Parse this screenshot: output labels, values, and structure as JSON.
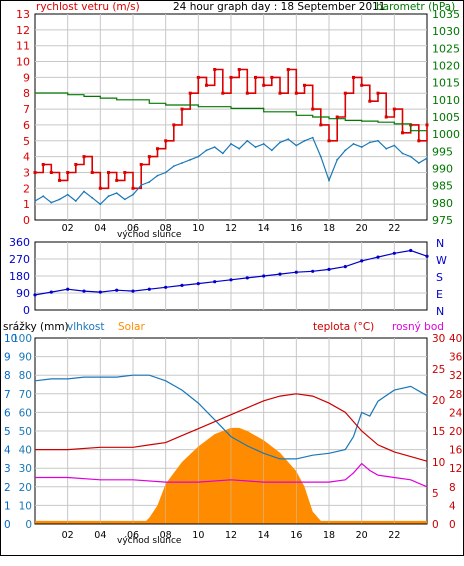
{
  "colors": {
    "wind": "#dd0000",
    "gust_line": "#cc0000",
    "humidity_blue": "#1a78b8",
    "pressure": "#007700",
    "direction": "#0000cc",
    "solar": "#ff8c00",
    "temperature": "#cc0000",
    "dew_point": "#dd00dd",
    "rain": "#0066cc",
    "grid": "#c8c8c8",
    "frame": "#000000"
  },
  "chart_data": [
    {
      "type": "line",
      "title": "24 hour graph day : 18 September 2011",
      "left_label": "rychlost vetru (m/s)",
      "right_label": "barometr (hPa)",
      "ylim_left": [
        0,
        13
      ],
      "yticks_left": [
        "0",
        "1",
        "2",
        "3",
        "4",
        "5",
        "6",
        "7",
        "8",
        "9",
        "10",
        "11",
        "12",
        "13"
      ],
      "ylim_right": [
        975,
        1035
      ],
      "yticks_right": [
        "975",
        "980",
        "985",
        "990",
        "995",
        "1000",
        "1005",
        "1010",
        "1015",
        "1020",
        "1025",
        "1030",
        "1035"
      ],
      "x_ticks": [
        "02",
        "04",
        "06",
        "08",
        "10",
        "12",
        "14",
        "16",
        "18",
        "20",
        "22",
        ""
      ],
      "x_note": "východ slunce",
      "series": [
        {
          "kind": "wind_gust",
          "x": [
            0,
            0.5,
            1,
            1.5,
            2,
            2.5,
            3,
            3.5,
            4,
            4.5,
            5,
            5.5,
            6,
            6.5,
            7,
            7.5,
            8,
            8.5,
            9,
            9.5,
            10,
            10.5,
            11,
            11.5,
            12,
            12.5,
            13,
            13.5,
            14,
            14.5,
            15,
            15.5,
            16,
            16.5,
            17,
            17.5,
            18,
            18.5,
            19,
            19.5,
            20,
            20.5,
            21,
            21.5,
            22,
            22.5,
            23,
            23.5,
            24
          ],
          "values": [
            3,
            3.5,
            3,
            2.5,
            3,
            3.5,
            4,
            3,
            2,
            3,
            2.5,
            3,
            2,
            3.5,
            4,
            4.5,
            5,
            6,
            7,
            8,
            9,
            8.5,
            9.5,
            8,
            9,
            9.5,
            8,
            9,
            8.5,
            9,
            8,
            9.5,
            8,
            8.5,
            7,
            6,
            5,
            6.5,
            8,
            9,
            8.5,
            7.5,
            8,
            6.5,
            7,
            5.5,
            6,
            5,
            6
          ]
        },
        {
          "kind": "wind_avg",
          "x": [
            0,
            0.5,
            1,
            1.5,
            2,
            2.5,
            3,
            3.5,
            4,
            4.5,
            5,
            5.5,
            6,
            6.5,
            7,
            7.5,
            8,
            8.5,
            9,
            9.5,
            10,
            10.5,
            11,
            11.5,
            12,
            12.5,
            13,
            13.5,
            14,
            14.5,
            15,
            15.5,
            16,
            16.5,
            17,
            17.5,
            18,
            18.5,
            19,
            19.5,
            20,
            20.5,
            21,
            21.5,
            22,
            22.5,
            23,
            23.5,
            24
          ],
          "values": [
            1.2,
            1.5,
            1.1,
            1.3,
            1.6,
            1.2,
            1.8,
            1.4,
            1,
            1.5,
            1.7,
            1.3,
            1.6,
            2.2,
            2.4,
            2.8,
            3,
            3.4,
            3.6,
            3.8,
            4,
            4.4,
            4.6,
            4.2,
            4.8,
            4.5,
            5,
            4.6,
            4.8,
            4.4,
            4.9,
            5.1,
            4.7,
            5,
            5.2,
            4,
            2.5,
            3.8,
            4.4,
            4.8,
            4.6,
            4.9,
            5,
            4.5,
            4.7,
            4.2,
            4,
            3.6,
            3.9
          ]
        },
        {
          "kind": "pressure",
          "x": [
            0,
            2,
            3,
            4,
            5,
            7,
            8,
            10,
            12,
            14,
            16,
            17,
            18,
            19,
            20,
            21,
            22,
            23,
            24
          ],
          "values": [
            1012,
            1011.5,
            1011,
            1010.5,
            1010,
            1009,
            1008.5,
            1008,
            1007.5,
            1006.5,
            1005.5,
            1005,
            1004.5,
            1004,
            1003.8,
            1003.5,
            1003,
            1001,
            1001
          ]
        }
      ]
    },
    {
      "type": "scatter",
      "title": "",
      "ylim": [
        0,
        360
      ],
      "yticks": [
        "0",
        "90",
        "180",
        "270",
        "360"
      ],
      "compass": [
        "N",
        "W",
        "S",
        "E",
        "N"
      ],
      "series": [
        {
          "kind": "wind_direction",
          "x": [
            0,
            1,
            2,
            3,
            4,
            5,
            6,
            7,
            8,
            9,
            10,
            11,
            12,
            13,
            14,
            15,
            16,
            17,
            18,
            19,
            20,
            21,
            22,
            23,
            24
          ],
          "values": [
            80,
            95,
            110,
            100,
            95,
            105,
            100,
            110,
            120,
            130,
            140,
            150,
            160,
            170,
            180,
            190,
            200,
            205,
            215,
            230,
            260,
            280,
            300,
            315,
            285
          ]
        }
      ]
    },
    {
      "type": "area",
      "left_labels": [
        "srážky (mm)",
        "vlhkost",
        "Solar"
      ],
      "right_labels": [
        "teplota (°C)",
        "rosný bod"
      ],
      "rain_ticks": [
        "0",
        "1",
        "2",
        "3",
        "4",
        "5",
        "6",
        "7",
        "8",
        "9",
        "10"
      ],
      "hum_ticks": [
        "0",
        "10",
        "20",
        "30",
        "40",
        "50",
        "60",
        "70",
        "80",
        "90",
        "100"
      ],
      "solar_ticks": [
        "0",
        "8",
        "16",
        "24",
        "32",
        "40",
        "48",
        "56",
        "64",
        "72",
        "80"
      ],
      "solar_ticks_right": [
        "0",
        "5",
        "10",
        "15",
        "20",
        "25",
        "30"
      ],
      "temp_ticks": [
        "0",
        "4",
        "8",
        "12",
        "16",
        "20",
        "24",
        "28",
        "32",
        "36",
        "40"
      ],
      "x_ticks": [
        "02",
        "04",
        "06",
        "08",
        "10",
        "12",
        "14",
        "16",
        "18",
        "20",
        "22",
        ""
      ],
      "x_note": "východ slunce",
      "series": [
        {
          "kind": "solar",
          "x": [
            0,
            6.8,
            7,
            7.5,
            8,
            9,
            10,
            11,
            12,
            12.5,
            13,
            14,
            15,
            16,
            16.5,
            17,
            17.5,
            24
          ],
          "values": [
            0.5,
            0.5,
            1,
            3,
            6.5,
            10,
            12.5,
            14.5,
            15.5,
            15.5,
            15,
            13.5,
            11.5,
            8.5,
            6,
            2,
            0.5,
            0.5
          ]
        },
        {
          "kind": "humidity",
          "x": [
            0,
            1,
            2,
            3,
            4,
            5,
            6,
            7,
            8,
            9,
            10,
            11,
            12,
            13,
            14,
            15,
            16,
            17,
            18,
            19,
            19.5,
            20,
            20.5,
            21,
            22,
            23,
            24
          ],
          "values": [
            77,
            78,
            78,
            79,
            79,
            79,
            80,
            80,
            77,
            72,
            65,
            56,
            47,
            42,
            38,
            35,
            35,
            37,
            38,
            40,
            47,
            60,
            58,
            66,
            72,
            74,
            69
          ]
        },
        {
          "kind": "temperature",
          "x": [
            0,
            2,
            4,
            6,
            7,
            8,
            9,
            10,
            11,
            12,
            13,
            14,
            15,
            16,
            17,
            18,
            19,
            20,
            21,
            22,
            23,
            24
          ],
          "values": [
            16,
            16,
            16.5,
            16.5,
            17,
            17.5,
            19,
            20.5,
            22,
            23.5,
            25,
            26.5,
            27.5,
            28,
            27.5,
            26,
            24,
            20,
            17,
            15.5,
            14.5,
            13.5
          ]
        },
        {
          "kind": "dew_point",
          "x": [
            0,
            2,
            4,
            6,
            8,
            10,
            12,
            14,
            16,
            18,
            19,
            19.5,
            20,
            20.5,
            21,
            22,
            23,
            24
          ],
          "values": [
            10,
            10,
            9.5,
            9.5,
            9,
            9,
            9.5,
            9,
            9,
            9,
            9.5,
            11,
            13,
            11.5,
            10.5,
            10,
            9.5,
            8
          ]
        }
      ]
    }
  ]
}
